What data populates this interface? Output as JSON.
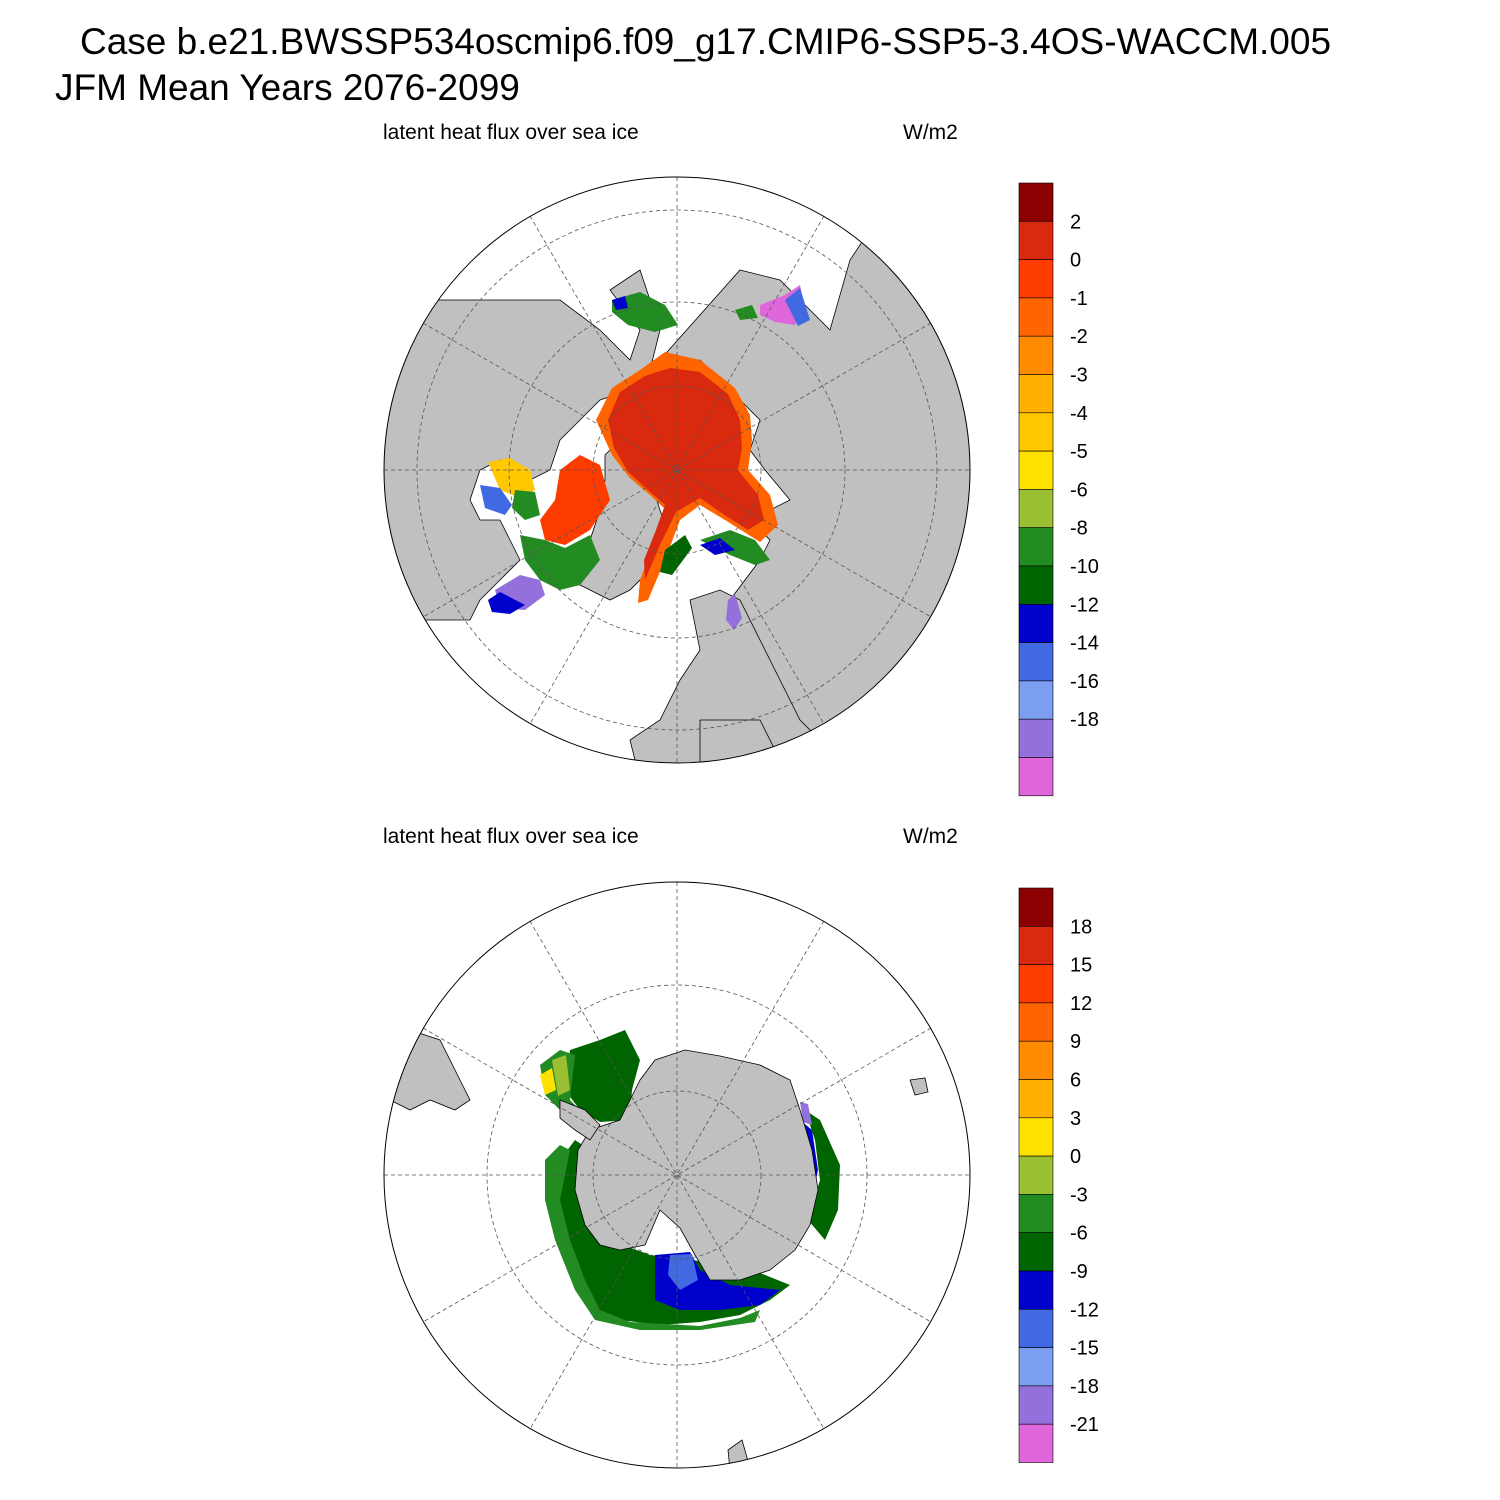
{
  "header": {
    "case_line": "Case b.e21.BWSSP534oscmip6.f09_g17.CMIP6-SSP5-3.4OS-WACCM.005",
    "period_line": "JFM Mean    Years 2076-2099"
  },
  "colors": {
    "land": "#c0c0c0",
    "ocean": "#ffffff",
    "grid": "#555555"
  },
  "chart_data": [
    {
      "type": "heatmap",
      "projection": "north-polar-stereographic",
      "title": "latent heat flux over sea ice",
      "units": "W/m2",
      "legend": "right",
      "grid": true,
      "colorbar": {
        "labels": [
          "2",
          "0",
          "-1",
          "-2",
          "-3",
          "-4",
          "-5",
          "-6",
          "-8",
          "-10",
          "-12",
          "-14",
          "-16",
          "-18"
        ],
        "colors": [
          "#8b0000",
          "#d92a10",
          "#ff3c00",
          "#ff6400",
          "#ff8c00",
          "#ffb000",
          "#ffc800",
          "#ffe100",
          "#9bbf32",
          "#228b22",
          "#006400",
          "#0000cd",
          "#4169e1",
          "#7b9ef0",
          "#9370db",
          "#e066db"
        ]
      },
      "field_summary": {
        "central_arctic_ice": "0 to 2",
        "ice_edge": "-1 to -6",
        "hudson_bay": "-6 to -14",
        "sea_of_okhotsk": "-8 to -18",
        "labrador_sea": "-10 to -18"
      }
    },
    {
      "type": "heatmap",
      "projection": "south-polar-stereographic",
      "title": "latent heat flux over sea ice",
      "units": "W/m2",
      "legend": "right",
      "grid": true,
      "colorbar": {
        "labels": [
          "18",
          "15",
          "12",
          "9",
          "6",
          "3",
          "0",
          "-3",
          "-6",
          "-9",
          "-12",
          "-15",
          "-18",
          "-21"
        ],
        "colors": [
          "#8b0000",
          "#d92a10",
          "#ff3c00",
          "#ff6400",
          "#ff8c00",
          "#ffb000",
          "#ffe100",
          "#9bbf32",
          "#228b22",
          "#006400",
          "#0000cd",
          "#4169e1",
          "#7b9ef0",
          "#9370db",
          "#e066db"
        ]
      },
      "field_summary": {
        "weddell_sea": "-6 to -9",
        "ross_amundsen_seas": "-6 to -12",
        "east_antarctic_coast": "-9 to -15"
      }
    }
  ]
}
